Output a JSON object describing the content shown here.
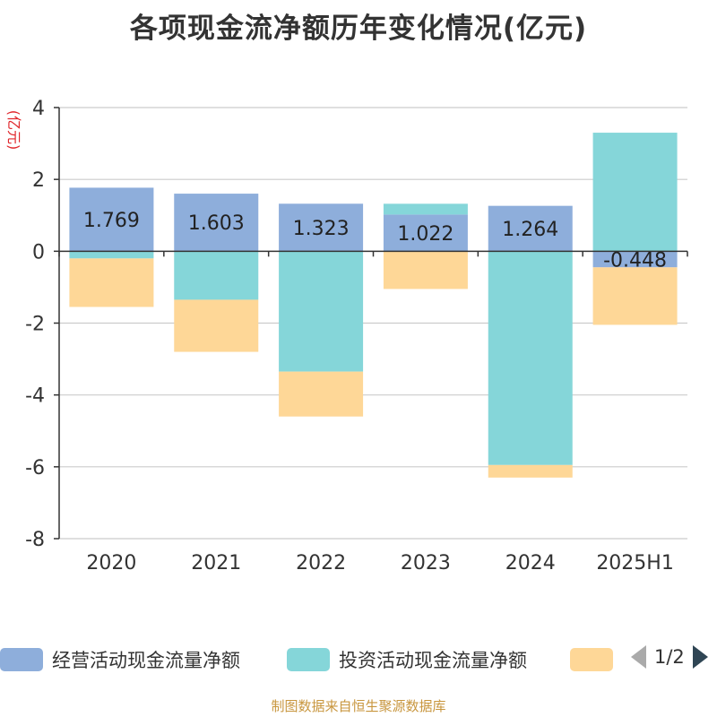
{
  "title": "各项现金流净额历年变化情况(亿元)",
  "source": "制图数据来自恒生聚源数据库",
  "legend": {
    "items": [
      {
        "label": "经营活动现金流量净额",
        "color": "#8eaedb"
      },
      {
        "label": "投资活动现金流量净额",
        "color": "#85d6d9"
      },
      {
        "label": "",
        "color": "#fed797"
      }
    ],
    "page": "1/2"
  },
  "chart_data": {
    "type": "bar",
    "stacked": true,
    "title": "各项现金流净额历年变化情况(亿元)",
    "ylabel": "(亿元)",
    "xlabel": "",
    "ylim": [
      -8,
      4
    ],
    "yticks": [
      4,
      2,
      0,
      -2,
      -4,
      -6,
      -8
    ],
    "grid": true,
    "legend_position": "bottom",
    "categories": [
      "2020",
      "2021",
      "2022",
      "2023",
      "2024",
      "2025H1"
    ],
    "series": [
      {
        "name": "经营活动现金流量净额",
        "color": "#8eaedb",
        "values": [
          1.769,
          1.603,
          1.323,
          1.022,
          1.264,
          -0.448
        ],
        "labels": [
          "1.769",
          "1.603",
          "1.323",
          "1.022",
          "1.264",
          "-0.448"
        ]
      },
      {
        "name": "投资活动现金流量净额",
        "color": "#85d6d9",
        "values": [
          -0.2,
          -1.35,
          -3.35,
          0.3,
          -5.95,
          3.3
        ]
      },
      {
        "name": "",
        "color": "#fed797",
        "values": [
          -1.35,
          -1.45,
          -1.25,
          -1.05,
          -0.35,
          -1.6
        ]
      }
    ]
  }
}
